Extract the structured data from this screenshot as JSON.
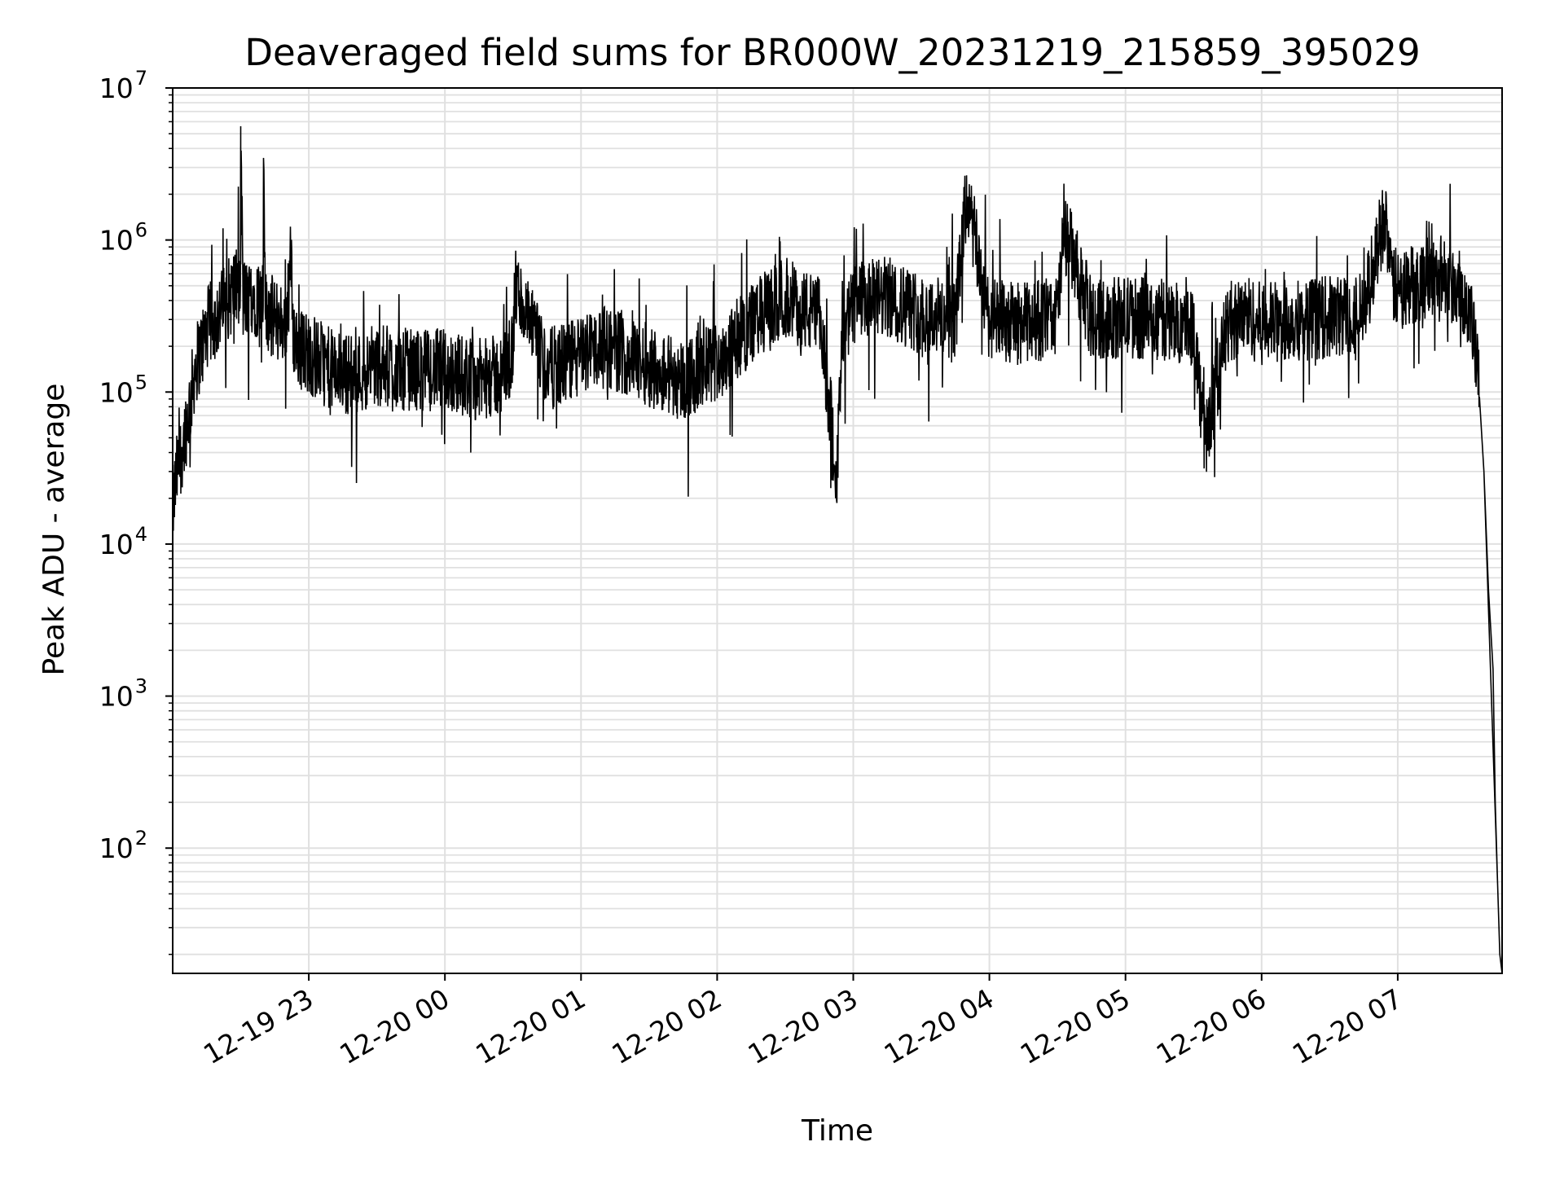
{
  "chart_data": {
    "type": "line",
    "title": "Deaveraged field sums for BR000W_20231219_215859_395029",
    "xlabel": "Time",
    "ylabel": "Peak ADU - average",
    "yscale": "log",
    "ylim": [
      15,
      10000000
    ],
    "xlim": [
      "2023-12-19 22:00",
      "2023-12-20 07:46"
    ],
    "grid": true,
    "legend": "none",
    "line_color": "#000000",
    "grid_color": "#e0e0e0",
    "x_ticks": [
      "12-19 23",
      "12-20 00",
      "12-20 01",
      "12-20 02",
      "12-20 03",
      "12-20 04",
      "12-20 05",
      "12-20 06",
      "12-20 07"
    ],
    "y_ticks": [
      {
        "base": "10",
        "exp": "2",
        "value": 100
      },
      {
        "base": "10",
        "exp": "3",
        "value": 1000
      },
      {
        "base": "10",
        "exp": "4",
        "value": 10000
      },
      {
        "base": "10",
        "exp": "5",
        "value": 100000
      },
      {
        "base": "10",
        "exp": "6",
        "value": 1000000
      },
      {
        "base": "10",
        "exp": "7",
        "value": 10000000
      }
    ],
    "series": [
      {
        "x": [
          "2023-12-19 22:00",
          "2023-12-19 22:02",
          "2023-12-19 22:05",
          "2023-12-19 22:08",
          "2023-12-19 22:10",
          "2023-12-19 22:13",
          "2023-12-19 22:16",
          "2023-12-19 22:20",
          "2023-12-19 22:25",
          "2023-12-19 22:28",
          "2023-12-19 22:30",
          "2023-12-19 22:30",
          "2023-12-19 22:31",
          "2023-12-19 22:35",
          "2023-12-19 22:40",
          "2023-12-19 22:40",
          "2023-12-19 22:41",
          "2023-12-19 22:45",
          "2023-12-19 22:50",
          "2023-12-19 22:52",
          "2023-12-19 22:53",
          "2023-12-19 22:55",
          "2023-12-19 23:00",
          "2023-12-19 23:10",
          "2023-12-19 23:20",
          "2023-12-19 23:30",
          "2023-12-19 23:45",
          "2023-12-20 00:00",
          "2023-12-20 00:15",
          "2023-12-20 00:25",
          "2023-12-20 00:30",
          "2023-12-20 00:31",
          "2023-12-20 00:45",
          "2023-12-20 01:00",
          "2023-12-20 01:05",
          "2023-12-20 01:15",
          "2023-12-20 01:30",
          "2023-12-20 01:45",
          "2023-12-20 02:00",
          "2023-12-20 02:15",
          "2023-12-20 02:30",
          "2023-12-20 02:45",
          "2023-12-20 02:53",
          "2023-12-20 02:55",
          "2023-12-20 03:00",
          "2023-12-20 03:15",
          "2023-12-20 03:30",
          "2023-12-20 03:45",
          "2023-12-20 03:50",
          "2023-12-20 04:00",
          "2023-12-20 04:15",
          "2023-12-20 04:30",
          "2023-12-20 04:33",
          "2023-12-20 04:45",
          "2023-12-20 05:00",
          "2023-12-20 05:15",
          "2023-12-20 05:30",
          "2023-12-20 05:35",
          "2023-12-20 05:45",
          "2023-12-20 05:55",
          "2023-12-20 05:56",
          "2023-12-20 06:00",
          "2023-12-20 06:15",
          "2023-12-20 06:30",
          "2023-12-20 06:45",
          "2023-12-20 06:55",
          "2023-12-20 06:56",
          "2023-12-20 07:00",
          "2023-12-20 07:10",
          "2023-12-20 07:20",
          "2023-12-20 07:25",
          "2023-12-20 07:30",
          "2023-12-20 07:33",
          "2023-12-20 07:36",
          "2023-12-20 07:38",
          "2023-12-20 07:40",
          "2023-12-20 07:42",
          "2023-12-20 07:43",
          "2023-12-20 07:44",
          "2023-12-20 07:45",
          "2023-12-20 07:46"
        ],
        "y": [
          17000,
          30000,
          50000,
          90000,
          150000,
          200000,
          280000,
          320000,
          420000,
          500000,
          420000,
          5600000,
          400000,
          450000,
          380000,
          2300000,
          350000,
          300000,
          280000,
          900000,
          250000,
          200000,
          180000,
          140000,
          130000,
          150000,
          140000,
          140000,
          120000,
          130000,
          180000,
          490000,
          140000,
          170000,
          200000,
          190000,
          150000,
          120000,
          160000,
          280000,
          420000,
          300000,
          32000,
          200000,
          380000,
          420000,
          330000,
          300000,
          1950000,
          300000,
          280000,
          320000,
          1200000,
          300000,
          310000,
          300000,
          280000,
          45000,
          290000,
          320000,
          300000,
          280000,
          300000,
          310000,
          340000,
          1700000,
          600000,
          450000,
          550000,
          600000,
          500000,
          420000,
          260000,
          100000,
          30000,
          5000,
          1500,
          200,
          60,
          20,
          15
        ]
      }
    ]
  }
}
